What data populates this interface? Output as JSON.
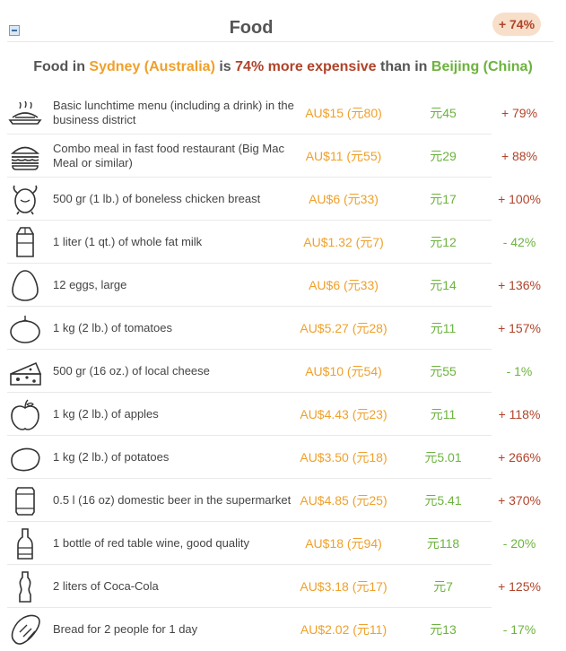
{
  "header": {
    "title": "Food",
    "badge": "+ 74%"
  },
  "summary": {
    "prefix": "Food in ",
    "city1": "Sydney (Australia)",
    "middle": " is ",
    "pct": "74% more expensive",
    "than": " than in ",
    "city2": "Beijing (China)"
  },
  "colors": {
    "au_price": "#f0a02a",
    "cn_price": "#6cb33e",
    "increase": "#b0432a",
    "decrease": "#6cb33e",
    "badge_bg": "#f7dfc9"
  },
  "items": [
    {
      "icon": "lunch-plate-icon",
      "label": "Basic lunchtime menu (including a drink) in the business district",
      "au": "AU$15 (元80)",
      "cn": "元45",
      "diff": "+ 79%",
      "dir": "up"
    },
    {
      "icon": "burger-icon",
      "label": "Combo meal in fast food restaurant (Big Mac Meal or similar)",
      "au": "AU$11 (元55)",
      "cn": "元29",
      "diff": "+ 88%",
      "dir": "up"
    },
    {
      "icon": "chicken-icon",
      "label": "500 gr (1 lb.) of boneless chicken breast",
      "au": "AU$6 (元33)",
      "cn": "元17",
      "diff": "+ 100%",
      "dir": "up"
    },
    {
      "icon": "milk-carton-icon",
      "label": "1 liter (1 qt.) of whole fat milk",
      "au": "AU$1.32 (元7)",
      "cn": "元12",
      "diff": "- 42%",
      "dir": "down"
    },
    {
      "icon": "egg-icon",
      "label": "12 eggs, large",
      "au": "AU$6 (元33)",
      "cn": "元14",
      "diff": "+ 136%",
      "dir": "up"
    },
    {
      "icon": "tomato-icon",
      "label": "1 kg (2 lb.) of tomatoes",
      "au": "AU$5.27 (元28)",
      "cn": "元11",
      "diff": "+ 157%",
      "dir": "up"
    },
    {
      "icon": "cheese-icon",
      "label": "500 gr (16 oz.) of local cheese",
      "au": "AU$10 (元54)",
      "cn": "元55",
      "diff": "- 1%",
      "dir": "down"
    },
    {
      "icon": "apple-icon",
      "label": "1 kg (2 lb.) of apples",
      "au": "AU$4.43 (元23)",
      "cn": "元11",
      "diff": "+ 118%",
      "dir": "up"
    },
    {
      "icon": "potato-icon",
      "label": "1 kg (2 lb.) of potatoes",
      "au": "AU$3.50 (元18)",
      "cn": "元5.01",
      "diff": "+ 266%",
      "dir": "up"
    },
    {
      "icon": "beer-can-icon",
      "label": "0.5 l (16 oz) domestic beer in the supermarket",
      "au": "AU$4.85 (元25)",
      "cn": "元5.41",
      "diff": "+ 370%",
      "dir": "up"
    },
    {
      "icon": "wine-bottle-icon",
      "label": "1 bottle of red table wine, good quality",
      "au": "AU$18 (元94)",
      "cn": "元118",
      "diff": "- 20%",
      "dir": "down"
    },
    {
      "icon": "cola-bottle-icon",
      "label": "2 liters of Coca-Cola",
      "au": "AU$3.18 (元17)",
      "cn": "元7",
      "diff": "+ 125%",
      "dir": "up"
    },
    {
      "icon": "bread-icon",
      "label": "Bread for 2 people for 1 day",
      "au": "AU$2.02 (元11)",
      "cn": "元13",
      "diff": "- 17%",
      "dir": "down"
    }
  ]
}
